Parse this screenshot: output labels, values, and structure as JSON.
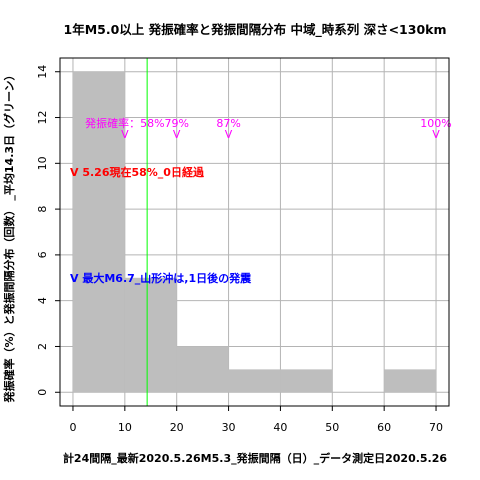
{
  "chart_data": {
    "type": "bar",
    "title": "1年M5.0以上 発振確率と発振間隔分布 中域_時系列 深さ<130km",
    "xlabel": "計24間隔_最新2020.5.26M5.3_発振間隔（日）_データ測定日2020.5.26",
    "ylabel": "発振確率（%）と発振間隔分布（回数） _平均14.3日（グリーン）",
    "xlim": [
      -2.5,
      72.5
    ],
    "ylim": [
      -0.6,
      14.6
    ],
    "x_ticks": [
      0,
      10,
      20,
      30,
      40,
      50,
      60,
      70
    ],
    "y_ticks": [
      0,
      2,
      4,
      6,
      8,
      10,
      12,
      14
    ],
    "grid": true,
    "bins": [
      {
        "x0": 0,
        "x1": 10,
        "count": 14
      },
      {
        "x0": 10,
        "x1": 20,
        "count": 5
      },
      {
        "x0": 20,
        "x1": 30,
        "count": 2
      },
      {
        "x0": 30,
        "x1": 40,
        "count": 1
      },
      {
        "x0": 40,
        "x1": 50,
        "count": 1
      },
      {
        "x0": 50,
        "x1": 60,
        "count": 0
      },
      {
        "x0": 60,
        "x1": 70,
        "count": 1
      }
    ],
    "mean_line_x": 14.3,
    "probability_markers": [
      {
        "x": 10,
        "label": "発振確率：58%",
        "marker": "V"
      },
      {
        "x": 20,
        "label": "79%",
        "marker": "V"
      },
      {
        "x": 30,
        "label": "87%",
        "marker": "V"
      },
      {
        "x": 70,
        "label": "100%",
        "marker": "V"
      }
    ],
    "annotations": [
      {
        "text": "V 5.26現在58%_0日経過",
        "color": "#ff0000"
      },
      {
        "text": "V 最大M6.7_山形沖は,1日後の発震",
        "color": "#0000ff"
      }
    ],
    "colors": {
      "bar": "#bebebe",
      "grid": "#b4b4b4",
      "mean_line": "#00ff00",
      "markers": "#ff00ff"
    }
  }
}
